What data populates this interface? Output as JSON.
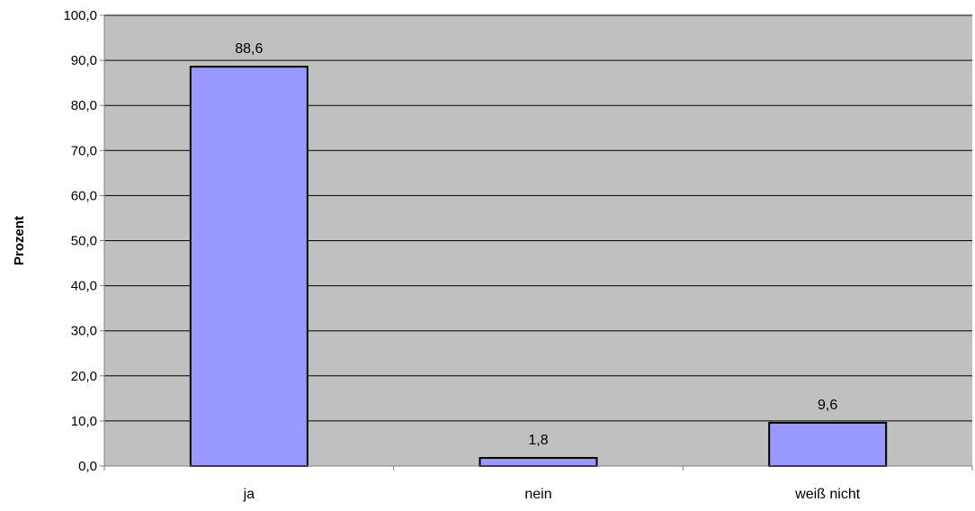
{
  "chart_data": {
    "type": "bar",
    "categories": [
      "ja",
      "nein",
      "weiß nicht"
    ],
    "values": [
      88.6,
      1.8,
      9.6
    ],
    "data_labels": [
      "88,6",
      "1,8",
      "9,6"
    ],
    "title": "",
    "xlabel": "",
    "ylabel": "Prozent",
    "ylim": [
      0,
      100
    ],
    "yticks": [
      0,
      10,
      20,
      30,
      40,
      50,
      60,
      70,
      80,
      90,
      100
    ],
    "ytick_labels": [
      "0,0",
      "10,0",
      "20,0",
      "30,0",
      "40,0",
      "50,0",
      "60,0",
      "70,0",
      "80,0",
      "90,0",
      "100,0"
    ],
    "grid": true,
    "legend": "none",
    "colors": {
      "plot_background": "#c0c0c0",
      "bar_fill": "#9999ff",
      "bar_stroke": "#000000",
      "gridline": "#000000",
      "axis": "#808080"
    }
  }
}
